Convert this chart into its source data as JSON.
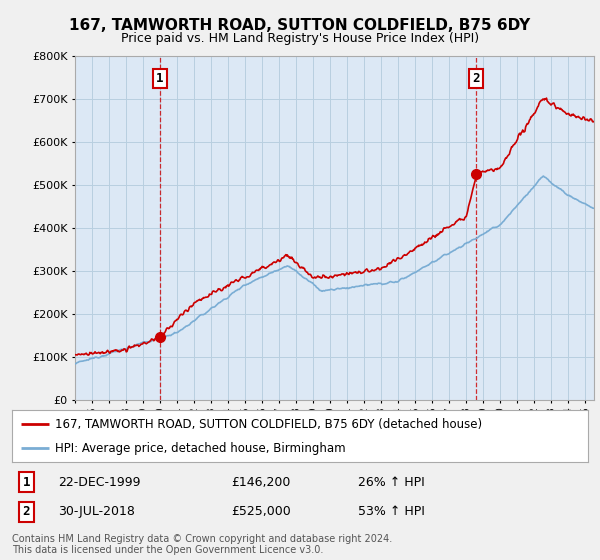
{
  "title": "167, TAMWORTH ROAD, SUTTON COLDFIELD, B75 6DY",
  "subtitle": "Price paid vs. HM Land Registry's House Price Index (HPI)",
  "legend_line1": "167, TAMWORTH ROAD, SUTTON COLDFIELD, B75 6DY (detached house)",
  "legend_line2": "HPI: Average price, detached house, Birmingham",
  "footnote": "Contains HM Land Registry data © Crown copyright and database right 2024.\nThis data is licensed under the Open Government Licence v3.0.",
  "sale1_label": "1",
  "sale1_date": "22-DEC-1999",
  "sale1_price": "£146,200",
  "sale1_hpi": "26% ↑ HPI",
  "sale2_label": "2",
  "sale2_date": "30-JUL-2018",
  "sale2_price": "£525,000",
  "sale2_hpi": "53% ↑ HPI",
  "sale1_x": 2000.0,
  "sale1_y": 146200,
  "sale2_x": 2018.58,
  "sale2_y": 525000,
  "hpi_color": "#7aadd4",
  "price_color": "#cc0000",
  "bg_color": "#f0f0f0",
  "plot_bg": "#dce8f5",
  "grid_color": "#b8cfe0",
  "ylim": [
    0,
    800000
  ],
  "xlim_start": 1995.0,
  "xlim_end": 2025.5
}
